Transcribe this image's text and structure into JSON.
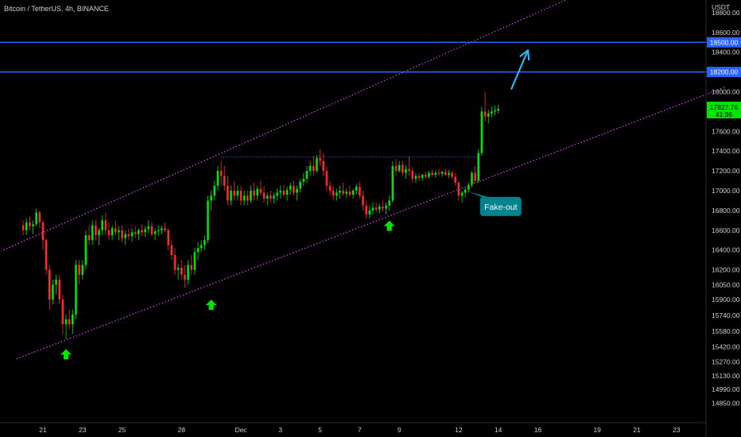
{
  "header": {
    "symbol": "Bitcoin / TetherUS, 4h, BINANCE"
  },
  "chart_data": {
    "type": "candlestick",
    "title": "Bitcoin / TetherUS, 4h, BINANCE",
    "y_unit": "USDT",
    "ylim": [
      14850,
      19000
    ],
    "x_ticks": [
      "21",
      "23",
      "25",
      "28",
      "Dec",
      "3",
      "5",
      "7",
      "9",
      "12",
      "14",
      "16",
      "19",
      "21",
      "23"
    ],
    "y_ticks": [
      "18800.00",
      "18600.00",
      "18400.00",
      "18000.00",
      "17800.00",
      "17600.00",
      "17400.00",
      "17200.00",
      "17000.00",
      "16800.00",
      "16600.00",
      "16400.00",
      "16200.00",
      "16050.00",
      "15900.00",
      "15740.00",
      "15580.00",
      "15420.00",
      "15270.00",
      "15130.00",
      "14990.00",
      "14850.00"
    ],
    "horizontal_levels": [
      {
        "value": 18500,
        "label": "18500.00",
        "color": "#2962ff"
      },
      {
        "value": 18200,
        "label": "18200.00",
        "color": "#2962ff"
      }
    ],
    "last_price": {
      "value": 17827.76,
      "label": "17827.76",
      "countdown": "41:36",
      "color": "#00e600"
    },
    "resistance_level": 17340,
    "channel": {
      "upper": {
        "start": [
          "2022-11-19 00:00",
          16400
        ],
        "end": [
          "2022-12-17 16:00",
          18950
        ]
      },
      "lower": {
        "start": [
          "2022-11-19 16:00",
          15300
        ],
        "end": [
          "2022-12-25 12:00",
          18050
        ]
      }
    },
    "markers": [
      {
        "type": "support-arrow",
        "date": "2022-11-22 04:00",
        "value": 15350
      },
      {
        "type": "support-arrow",
        "date": "2022-11-29 12:00",
        "value": 15850
      },
      {
        "type": "support-arrow",
        "date": "2022-12-08 12:00",
        "value": 16650
      }
    ],
    "projection_arrow": {
      "start": [
        "2022-12-14 16:00",
        18030
      ],
      "end": [
        "2022-12-15 12:00",
        18420
      ]
    },
    "annotation": {
      "text": "Fake-out",
      "date": "2022-12-13 00:00",
      "value": 16840
    },
    "candles": [
      [
        "2022-11-20 00:00",
        16650,
        16700,
        16550,
        16600
      ],
      [
        "2022-11-20 04:00",
        16600,
        16720,
        16550,
        16680
      ],
      [
        "2022-11-20 08:00",
        16680,
        16740,
        16600,
        16640
      ],
      [
        "2022-11-20 12:00",
        16640,
        16700,
        16560,
        16660
      ],
      [
        "2022-11-20 16:00",
        16660,
        16820,
        16640,
        16780
      ],
      [
        "2022-11-20 20:00",
        16780,
        16800,
        16620,
        16680
      ],
      [
        "2022-11-21 00:00",
        16680,
        16700,
        16400,
        16500
      ],
      [
        "2022-11-21 04:00",
        16500,
        16520,
        16150,
        16200
      ],
      [
        "2022-11-21 08:00",
        16200,
        16250,
        15800,
        15900
      ],
      [
        "2022-11-21 12:00",
        15900,
        16100,
        15850,
        16050
      ],
      [
        "2022-11-21 16:00",
        16050,
        16150,
        15950,
        16100
      ],
      [
        "2022-11-21 20:00",
        16100,
        16150,
        15850,
        15900
      ],
      [
        "2022-11-22 00:00",
        15900,
        15950,
        15550,
        15650
      ],
      [
        "2022-11-22 04:00",
        15650,
        15750,
        15500,
        15700
      ],
      [
        "2022-11-22 08:00",
        15700,
        15800,
        15600,
        15650
      ],
      [
        "2022-11-22 12:00",
        15650,
        15800,
        15550,
        15750
      ],
      [
        "2022-11-22 16:00",
        15750,
        16300,
        15700,
        16250
      ],
      [
        "2022-11-22 20:00",
        16250,
        16300,
        16050,
        16150
      ],
      [
        "2022-11-23 00:00",
        16150,
        16300,
        16100,
        16250
      ],
      [
        "2022-11-23 04:00",
        16250,
        16600,
        16200,
        16550
      ],
      [
        "2022-11-23 08:00",
        16550,
        16650,
        16450,
        16500
      ],
      [
        "2022-11-23 12:00",
        16500,
        16700,
        16450,
        16650
      ],
      [
        "2022-11-23 16:00",
        16650,
        16700,
        16500,
        16550
      ],
      [
        "2022-11-23 20:00",
        16550,
        16620,
        16450,
        16600
      ],
      [
        "2022-11-24 00:00",
        16600,
        16750,
        16550,
        16700
      ],
      [
        "2022-11-24 04:00",
        16700,
        16780,
        16550,
        16600
      ],
      [
        "2022-11-24 08:00",
        16600,
        16680,
        16500,
        16550
      ],
      [
        "2022-11-24 12:00",
        16550,
        16650,
        16500,
        16620
      ],
      [
        "2022-11-24 16:00",
        16620,
        16700,
        16550,
        16580
      ],
      [
        "2022-11-24 20:00",
        16580,
        16640,
        16500,
        16600
      ],
      [
        "2022-11-25 00:00",
        16600,
        16650,
        16480,
        16520
      ],
      [
        "2022-11-25 04:00",
        16520,
        16600,
        16450,
        16560
      ],
      [
        "2022-11-25 08:00",
        16560,
        16620,
        16500,
        16540
      ],
      [
        "2022-11-25 12:00",
        16540,
        16620,
        16480,
        16580
      ],
      [
        "2022-11-25 16:00",
        16580,
        16640,
        16520,
        16560
      ],
      [
        "2022-11-25 20:00",
        16560,
        16620,
        16500,
        16600
      ],
      [
        "2022-11-26 00:00",
        16600,
        16660,
        16540,
        16580
      ],
      [
        "2022-11-26 04:00",
        16580,
        16640,
        16530,
        16610
      ],
      [
        "2022-11-26 08:00",
        16610,
        16700,
        16570,
        16640
      ],
      [
        "2022-11-26 12:00",
        16640,
        16680,
        16540,
        16560
      ],
      [
        "2022-11-26 16:00",
        16560,
        16620,
        16500,
        16590
      ],
      [
        "2022-11-26 20:00",
        16590,
        16650,
        16540,
        16600
      ],
      [
        "2022-11-27 00:00",
        16600,
        16650,
        16560,
        16620
      ],
      [
        "2022-11-27 04:00",
        16620,
        16680,
        16580,
        16600
      ],
      [
        "2022-11-27 08:00",
        16600,
        16620,
        16400,
        16450
      ],
      [
        "2022-11-27 12:00",
        16450,
        16500,
        16300,
        16350
      ],
      [
        "2022-11-27 16:00",
        16350,
        16420,
        16150,
        16200
      ],
      [
        "2022-11-27 20:00",
        16200,
        16260,
        16100,
        16220
      ],
      [
        "2022-11-28 00:00",
        16220,
        16300,
        16100,
        16150
      ],
      [
        "2022-11-28 04:00",
        16150,
        16250,
        16020,
        16100
      ],
      [
        "2022-11-28 08:00",
        16100,
        16300,
        16050,
        16250
      ],
      [
        "2022-11-28 12:00",
        16250,
        16350,
        16150,
        16200
      ],
      [
        "2022-11-28 16:00",
        16200,
        16420,
        16150,
        16380
      ],
      [
        "2022-11-28 20:00",
        16380,
        16480,
        16300,
        16420
      ],
      [
        "2022-11-29 00:00",
        16420,
        16500,
        16380,
        16450
      ],
      [
        "2022-11-29 04:00",
        16450,
        16550,
        16400,
        16500
      ],
      [
        "2022-11-29 08:00",
        16500,
        16950,
        16470,
        16900
      ],
      [
        "2022-11-29 12:00",
        16900,
        17000,
        16800,
        16950
      ],
      [
        "2022-11-29 16:00",
        16950,
        17100,
        16900,
        17050
      ],
      [
        "2022-11-29 20:00",
        17050,
        17250,
        17000,
        17200
      ],
      [
        "2022-11-30 00:00",
        17200,
        17300,
        17050,
        17150
      ],
      [
        "2022-11-30 04:00",
        17150,
        17250,
        17000,
        17050
      ],
      [
        "2022-11-30 08:00",
        17050,
        17150,
        16850,
        16900
      ],
      [
        "2022-11-30 12:00",
        16900,
        17050,
        16850,
        17000
      ],
      [
        "2022-11-30 16:00",
        17000,
        17100,
        16900,
        16950
      ],
      [
        "2022-11-30 20:00",
        16950,
        17050,
        16900,
        17000
      ],
      [
        "2022-12-01 00:00",
        17000,
        17050,
        16850,
        16900
      ],
      [
        "2022-12-01 04:00",
        16900,
        17000,
        16850,
        16950
      ],
      [
        "2022-12-01 08:00",
        16950,
        17000,
        16850,
        16900
      ],
      [
        "2022-12-01 12:00",
        16900,
        17050,
        16880,
        17000
      ],
      [
        "2022-12-01 16:00",
        17000,
        17080,
        16900,
        16950
      ],
      [
        "2022-12-01 20:00",
        16950,
        17050,
        16900,
        17020
      ],
      [
        "2022-12-02 00:00",
        17020,
        17100,
        16950,
        16980
      ],
      [
        "2022-12-02 04:00",
        16980,
        17050,
        16880,
        16920
      ],
      [
        "2022-12-02 08:00",
        16920,
        16980,
        16850,
        16950
      ],
      [
        "2022-12-02 12:00",
        16950,
        17000,
        16880,
        16920
      ],
      [
        "2022-12-02 16:00",
        16920,
        16980,
        16870,
        16950
      ],
      [
        "2022-12-02 20:00",
        16950,
        17020,
        16900,
        16980
      ],
      [
        "2022-12-03 00:00",
        16980,
        17050,
        16920,
        17000
      ],
      [
        "2022-12-03 04:00",
        17000,
        17060,
        16930,
        16960
      ],
      [
        "2022-12-03 08:00",
        16960,
        17040,
        16900,
        17010
      ],
      [
        "2022-12-03 12:00",
        17010,
        17080,
        16960,
        17050
      ],
      [
        "2022-12-03 16:00",
        17050,
        17100,
        16950,
        16980
      ],
      [
        "2022-12-03 20:00",
        16980,
        17050,
        16900,
        17020
      ],
      [
        "2022-12-04 00:00",
        17020,
        17120,
        16980,
        17090
      ],
      [
        "2022-12-04 04:00",
        17090,
        17180,
        17050,
        17120
      ],
      [
        "2022-12-04 08:00",
        17120,
        17250,
        17080,
        17200
      ],
      [
        "2022-12-04 12:00",
        17200,
        17300,
        17150,
        17250
      ],
      [
        "2022-12-04 16:00",
        17250,
        17350,
        17150,
        17200
      ],
      [
        "2022-12-04 20:00",
        17200,
        17360,
        17180,
        17330
      ],
      [
        "2022-12-05 00:00",
        17330,
        17420,
        17250,
        17300
      ],
      [
        "2022-12-05 04:00",
        17300,
        17380,
        17150,
        17200
      ],
      [
        "2022-12-05 08:00",
        17200,
        17250,
        17000,
        17050
      ],
      [
        "2022-12-05 12:00",
        17050,
        17100,
        16950,
        17000
      ],
      [
        "2022-12-05 16:00",
        17000,
        17050,
        16900,
        16950
      ],
      [
        "2022-12-05 20:00",
        16950,
        17020,
        16900,
        16980
      ],
      [
        "2022-12-06 00:00",
        16980,
        17050,
        16920,
        17000
      ],
      [
        "2022-12-06 04:00",
        17000,
        17080,
        16950,
        16970
      ],
      [
        "2022-12-06 08:00",
        16970,
        17020,
        16930,
        16990
      ],
      [
        "2022-12-06 12:00",
        16990,
        17050,
        16940,
        16960
      ],
      [
        "2022-12-06 16:00",
        16960,
        17020,
        16920,
        17000
      ],
      [
        "2022-12-06 20:00",
        17000,
        17070,
        16960,
        17040
      ],
      [
        "2022-12-07 00:00",
        17040,
        17090,
        16920,
        16950
      ],
      [
        "2022-12-07 04:00",
        16950,
        17000,
        16800,
        16850
      ],
      [
        "2022-12-07 08:00",
        16850,
        16900,
        16720,
        16760
      ],
      [
        "2022-12-07 12:00",
        16760,
        16850,
        16720,
        16800
      ],
      [
        "2022-12-07 16:00",
        16800,
        16880,
        16760,
        16830
      ],
      [
        "2022-12-07 20:00",
        16830,
        16880,
        16780,
        16810
      ],
      [
        "2022-12-08 00:00",
        16810,
        16870,
        16770,
        16840
      ],
      [
        "2022-12-08 04:00",
        16840,
        16900,
        16790,
        16820
      ],
      [
        "2022-12-08 08:00",
        16820,
        16880,
        16760,
        16850
      ],
      [
        "2022-12-08 12:00",
        16850,
        16950,
        16800,
        16900
      ],
      [
        "2022-12-08 16:00",
        16900,
        17300,
        16880,
        17250
      ],
      [
        "2022-12-08 20:00",
        17250,
        17320,
        17150,
        17200
      ],
      [
        "2022-12-09 00:00",
        17200,
        17300,
        17180,
        17260
      ],
      [
        "2022-12-09 04:00",
        17260,
        17300,
        17150,
        17180
      ],
      [
        "2022-12-09 08:00",
        17180,
        17260,
        17120,
        17220
      ],
      [
        "2022-12-09 12:00",
        17220,
        17350,
        17150,
        17200
      ],
      [
        "2022-12-09 16:00",
        17200,
        17240,
        17080,
        17120
      ],
      [
        "2022-12-09 20:00",
        17120,
        17180,
        17080,
        17150
      ],
      [
        "2022-12-10 00:00",
        17150,
        17180,
        17100,
        17130
      ],
      [
        "2022-12-10 04:00",
        17130,
        17170,
        17100,
        17160
      ],
      [
        "2022-12-10 08:00",
        17160,
        17190,
        17120,
        17140
      ],
      [
        "2022-12-10 12:00",
        17140,
        17200,
        17120,
        17180
      ],
      [
        "2022-12-10 16:00",
        17180,
        17220,
        17140,
        17160
      ],
      [
        "2022-12-10 20:00",
        17160,
        17200,
        17130,
        17180
      ],
      [
        "2022-12-11 00:00",
        17180,
        17220,
        17150,
        17170
      ],
      [
        "2022-12-11 04:00",
        17170,
        17200,
        17140,
        17190
      ],
      [
        "2022-12-11 08:00",
        17190,
        17220,
        17150,
        17160
      ],
      [
        "2022-12-11 12:00",
        17160,
        17210,
        17130,
        17180
      ],
      [
        "2022-12-11 16:00",
        17180,
        17200,
        17120,
        17140
      ],
      [
        "2022-12-11 20:00",
        17140,
        17180,
        17050,
        17080
      ],
      [
        "2022-12-12 00:00",
        17080,
        17100,
        16900,
        16950
      ],
      [
        "2022-12-12 04:00",
        16950,
        17000,
        16880,
        16980
      ],
      [
        "2022-12-12 08:00",
        16980,
        17030,
        16930,
        17010
      ],
      [
        "2022-12-12 12:00",
        17010,
        17080,
        16980,
        17060
      ],
      [
        "2022-12-12 16:00",
        17060,
        17200,
        17030,
        17180
      ],
      [
        "2022-12-12 20:00",
        17180,
        17250,
        17080,
        17100
      ],
      [
        "2022-12-13 00:00",
        17100,
        17420,
        17080,
        17380
      ],
      [
        "2022-12-13 04:00",
        17380,
        17850,
        17350,
        17800
      ],
      [
        "2022-12-13 08:00",
        17800,
        18000,
        17700,
        17750
      ],
      [
        "2022-12-13 12:00",
        17750,
        17820,
        17680,
        17780
      ],
      [
        "2022-12-13 16:00",
        17780,
        17850,
        17740,
        17800
      ],
      [
        "2022-12-13 20:00",
        17800,
        17860,
        17760,
        17810
      ],
      [
        "2022-12-14 00:00",
        17810,
        17870,
        17780,
        17827.76
      ]
    ]
  },
  "colors": {
    "up": "#00e600",
    "down": "#ff2a2a",
    "channel": "#e040fb",
    "level": "#2962ff",
    "resistance": "#2962ff",
    "support_arrow": "#00e600",
    "projection_arrow": "#29b6f6",
    "callout_bg": "#00838f"
  }
}
